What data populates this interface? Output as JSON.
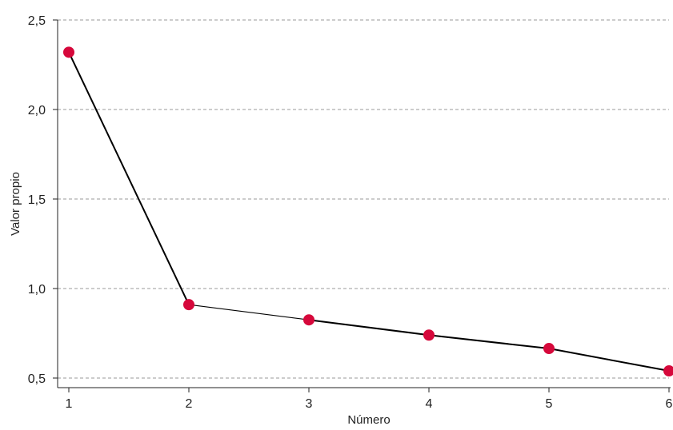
{
  "chart_data": {
    "type": "line",
    "title": "",
    "xlabel": "Número",
    "ylabel": "Valor propio",
    "x": [
      1,
      2,
      3,
      4,
      5,
      6
    ],
    "series": [
      {
        "values": [
          2.32,
          0.91,
          0.825,
          0.74,
          0.665,
          0.54
        ]
      }
    ],
    "xlim": [
      1,
      6
    ],
    "ylim": [
      0.5,
      2.5
    ],
    "xticks": [
      "1",
      "2",
      "3",
      "4",
      "5",
      "6"
    ],
    "yticks": [
      "0,5",
      "1,0",
      "1,5",
      "2,0",
      "2,5"
    ],
    "ytick_values": [
      0.5,
      1.0,
      1.5,
      2.0,
      2.5
    ],
    "grid": "horizontal-dashed",
    "legend": "none"
  },
  "colors": {
    "line": "#000000",
    "marker": "#d6083b",
    "grid": "#999999",
    "axis": "#222222"
  }
}
